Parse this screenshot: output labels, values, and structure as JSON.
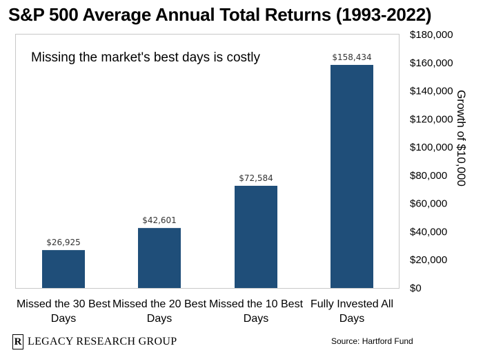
{
  "chart_data": {
    "type": "bar",
    "title": "S&P 500 Average Annual Total Returns (1993-2022)",
    "subtitle": "Missing the market's best days is costly",
    "categories": [
      "Missed the 30 Best Days",
      "Missed the 20 Best Days",
      "Missed the 10 Best Days",
      "Fully Invested All Days"
    ],
    "values": [
      26925,
      42601,
      72584,
      158434
    ],
    "data_labels": [
      "$26,925",
      "$42,601",
      "$72,584",
      "$158,434"
    ],
    "ylabel": "Growth of $10,000",
    "ylim": [
      0,
      180000
    ],
    "yticks": [
      0,
      20000,
      40000,
      60000,
      80000,
      100000,
      120000,
      140000,
      160000,
      180000
    ],
    "ytick_labels": [
      "$0",
      "$20,000",
      "$40,000",
      "$60,000",
      "$80,000",
      "$100,000",
      "$120,000",
      "$140,000",
      "$160,000",
      "$180,000"
    ],
    "y_axis_side": "right",
    "grid": false,
    "bar_color": "#1f4e79"
  },
  "footer": {
    "logo_mark": "R",
    "logo_text": "LEGACY RESEARCH GROUP",
    "source": "Source: Hartford Fund"
  }
}
